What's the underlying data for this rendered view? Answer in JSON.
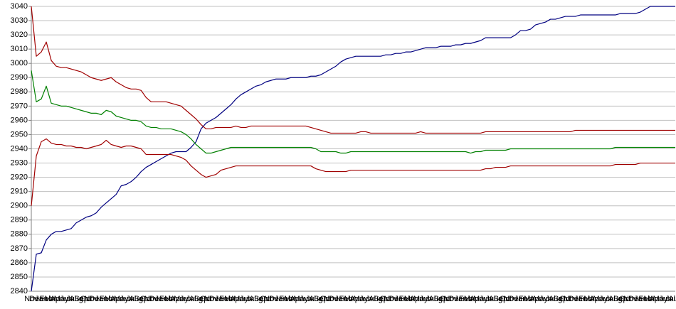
{
  "chart_data": {
    "type": "line",
    "categories": [
      "Nov",
      "Dec",
      "Jan",
      "Feb",
      "Mar",
      "Apr",
      "May",
      "Jun",
      "Jul",
      "Aug",
      "Sep",
      "Oct",
      "Nov",
      "Dec",
      "Jan",
      "Feb",
      "Mar",
      "Apr",
      "May",
      "Jun",
      "Jul",
      "Aug",
      "Sep",
      "Oct",
      "Nov",
      "Dec",
      "Jan",
      "Feb",
      "Mar",
      "Apr",
      "May",
      "Jun",
      "Jul",
      "Aug",
      "Sep",
      "Oct",
      "Nov",
      "Dec",
      "Jan",
      "Feb",
      "Mar",
      "Apr",
      "May",
      "Jun",
      "Jul",
      "Aug",
      "Sep",
      "Oct",
      "Nov",
      "Dec",
      "Jan",
      "Feb",
      "Mar",
      "Apr",
      "May",
      "Jun",
      "Jul",
      "Aug",
      "Sep",
      "Oct",
      "Nov",
      "Dec",
      "Jan",
      "Feb",
      "Mar",
      "Apr",
      "May",
      "Jun",
      "Jul",
      "Aug",
      "Sep",
      "Oct",
      "Nov",
      "Dec",
      "Jan",
      "Feb",
      "Mar",
      "Apr",
      "May",
      "Jun",
      "Jul",
      "Aug",
      "Sep",
      "Oct",
      "Nov",
      "Dec",
      "Jan",
      "Feb",
      "Mar",
      "Apr",
      "May",
      "Jun",
      "Jul",
      "Aug",
      "Sep",
      "Oct",
      "Nov",
      "Dec",
      "Jan",
      "Feb",
      "Mar",
      "Apr",
      "May",
      "Jun",
      "Jul",
      "Aug",
      "Sep",
      "Oct",
      "Nov",
      "Dec",
      "Jan",
      "Feb",
      "Mar",
      "Apr",
      "May",
      "Jun",
      "Jul",
      "Aug",
      "Sep",
      "Oct",
      "Nov",
      "Dec",
      "Jan",
      "Feb",
      "Mar",
      "Apr",
      "May",
      "Jun",
      "Jul",
      "Aug"
    ],
    "series": [
      {
        "color": "#000080",
        "values": [
          2840,
          2866,
          2867,
          2876,
          2880,
          2882,
          2882,
          2883,
          2884,
          2888,
          2890,
          2892,
          2893,
          2895,
          2899,
          2902,
          2905,
          2908,
          2914,
          2915,
          2917,
          2920,
          2924,
          2927,
          2929,
          2931,
          2933,
          2935,
          2937,
          2938,
          2938,
          2938,
          2941,
          2945,
          2954,
          2958,
          2960,
          2962,
          2965,
          2968,
          2971,
          2975,
          2978,
          2980,
          2982,
          2984,
          2985,
          2987,
          2988,
          2989,
          2989,
          2989,
          2990,
          2990,
          2990,
          2990,
          2991,
          2991,
          2992,
          2994,
          2996,
          2998,
          3001,
          3003,
          3004,
          3005,
          3005,
          3005,
          3005,
          3005,
          3005,
          3006,
          3006,
          3007,
          3007,
          3008,
          3008,
          3009,
          3010,
          3011,
          3011,
          3011,
          3012,
          3012,
          3012,
          3013,
          3013,
          3014,
          3014,
          3015,
          3016,
          3018,
          3018,
          3018,
          3018,
          3018,
          3018,
          3020,
          3023,
          3023,
          3024,
          3027,
          3028,
          3029,
          3031,
          3031,
          3032,
          3033,
          3033,
          3033,
          3034,
          3034,
          3034,
          3034,
          3034,
          3034,
          3034,
          3034,
          3035,
          3035,
          3035,
          3035,
          3036,
          3038,
          3040,
          3040,
          3040,
          3040,
          3040,
          3040
        ]
      },
      {
        "color": "#a00000",
        "values": [
          3040,
          3005,
          3008,
          3015,
          3002,
          2998,
          2997,
          2997,
          2996,
          2995,
          2994,
          2992,
          2990,
          2989,
          2988,
          2989,
          2990,
          2987,
          2985,
          2983,
          2982,
          2982,
          2981,
          2976,
          2973,
          2973,
          2973,
          2973,
          2972,
          2971,
          2970,
          2967,
          2964,
          2961,
          2957,
          2954,
          2954,
          2955,
          2955,
          2955,
          2955,
          2956,
          2955,
          2955,
          2956,
          2956,
          2956,
          2956,
          2956,
          2956,
          2956,
          2956,
          2956,
          2956,
          2956,
          2956,
          2955,
          2954,
          2953,
          2952,
          2951,
          2951,
          2951,
          2951,
          2951,
          2951,
          2952,
          2952,
          2951,
          2951,
          2951,
          2951,
          2951,
          2951,
          2951,
          2951,
          2951,
          2951,
          2952,
          2951,
          2951,
          2951,
          2951,
          2951,
          2951,
          2951,
          2951,
          2951,
          2951,
          2951,
          2951,
          2952,
          2952,
          2952,
          2952,
          2952,
          2952,
          2952,
          2952,
          2952,
          2952,
          2952,
          2952,
          2952,
          2952,
          2952,
          2952,
          2952,
          2952,
          2953,
          2953,
          2953,
          2953,
          2953,
          2953,
          2953,
          2953,
          2953,
          2953,
          2953,
          2953,
          2953,
          2953,
          2953,
          2953,
          2953,
          2953,
          2953,
          2953,
          2953
        ]
      },
      {
        "color": "#008000",
        "values": [
          2995,
          2973,
          2975,
          2984,
          2972,
          2971,
          2970,
          2970,
          2969,
          2968,
          2967,
          2966,
          2965,
          2965,
          2964,
          2967,
          2966,
          2963,
          2962,
          2961,
          2960,
          2960,
          2959,
          2956,
          2955,
          2955,
          2954,
          2954,
          2954,
          2953,
          2952,
          2950,
          2947,
          2943,
          2940,
          2937,
          2937,
          2938,
          2939,
          2940,
          2941,
          2941,
          2941,
          2941,
          2941,
          2941,
          2941,
          2941,
          2941,
          2941,
          2941,
          2941,
          2941,
          2941,
          2941,
          2941,
          2941,
          2940,
          2938,
          2938,
          2938,
          2938,
          2937,
          2937,
          2938,
          2938,
          2938,
          2938,
          2938,
          2938,
          2938,
          2938,
          2938,
          2938,
          2938,
          2938,
          2938,
          2938,
          2938,
          2938,
          2938,
          2938,
          2938,
          2938,
          2938,
          2938,
          2938,
          2938,
          2937,
          2938,
          2938,
          2939,
          2939,
          2939,
          2939,
          2939,
          2940,
          2940,
          2940,
          2940,
          2940,
          2940,
          2940,
          2940,
          2940,
          2940,
          2940,
          2940,
          2940,
          2940,
          2940,
          2940,
          2940,
          2940,
          2940,
          2940,
          2940,
          2941,
          2941,
          2941,
          2941,
          2941,
          2941,
          2941,
          2941,
          2941,
          2941,
          2941,
          2941,
          2941
        ]
      },
      {
        "color": "#a00000",
        "values": [
          2900,
          2935,
          2945,
          2947,
          2944,
          2943,
          2943,
          2942,
          2942,
          2941,
          2941,
          2940,
          2941,
          2942,
          2943,
          2946,
          2943,
          2942,
          2941,
          2942,
          2942,
          2941,
          2940,
          2936,
          2936,
          2936,
          2936,
          2936,
          2936,
          2935,
          2934,
          2932,
          2928,
          2925,
          2922,
          2920,
          2921,
          2922,
          2925,
          2926,
          2927,
          2928,
          2928,
          2928,
          2928,
          2928,
          2928,
          2928,
          2928,
          2928,
          2928,
          2928,
          2928,
          2928,
          2928,
          2928,
          2928,
          2926,
          2925,
          2924,
          2924,
          2924,
          2924,
          2924,
          2925,
          2925,
          2925,
          2925,
          2925,
          2925,
          2925,
          2925,
          2925,
          2925,
          2925,
          2925,
          2925,
          2925,
          2925,
          2925,
          2925,
          2925,
          2925,
          2925,
          2925,
          2925,
          2925,
          2925,
          2925,
          2925,
          2925,
          2926,
          2926,
          2927,
          2927,
          2927,
          2928,
          2928,
          2928,
          2928,
          2928,
          2928,
          2928,
          2928,
          2928,
          2928,
          2928,
          2928,
          2928,
          2928,
          2928,
          2928,
          2928,
          2928,
          2928,
          2928,
          2928,
          2929,
          2929,
          2929,
          2929,
          2929,
          2930,
          2930,
          2930,
          2930,
          2930,
          2930,
          2930,
          2930
        ]
      }
    ],
    "ylim": [
      2840,
      3040
    ],
    "yticks": [
      2840,
      2850,
      2860,
      2870,
      2880,
      2890,
      2900,
      2910,
      2920,
      2930,
      2940,
      2950,
      2960,
      2970,
      2980,
      2990,
      3000,
      3010,
      3020,
      3030,
      3040
    ],
    "grid": true
  }
}
